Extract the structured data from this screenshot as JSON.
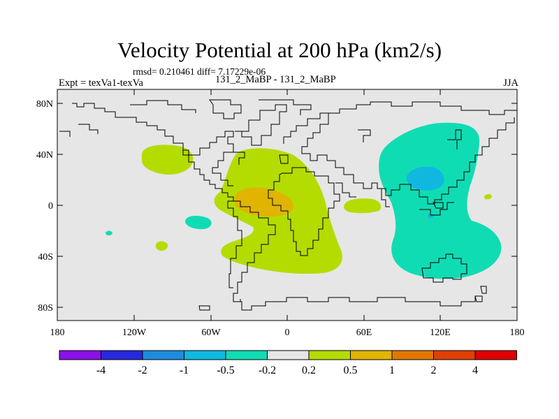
{
  "header": {
    "title": "Velocity Potential at 200 hPa (km2/s)",
    "stats": "rmsd= 0.210461 diff= 7.17229e-06",
    "expt_label": "Expt = texVa1-texVa",
    "experiment": "131_2_MaBP - 131_2_MaBP",
    "season": "JJA"
  },
  "map": {
    "projection": "cylindrical equidistant",
    "lon_range": [
      -180,
      180
    ],
    "lat_range": [
      -90,
      90
    ],
    "background_color": "#e6e6e6",
    "lat_ticks": [
      {
        "label": "80N",
        "value": 80
      },
      {
        "label": "40N",
        "value": 40
      },
      {
        "label": "0",
        "value": 0
      },
      {
        "label": "40S",
        "value": -40
      },
      {
        "label": "80S",
        "value": -80
      }
    ],
    "lon_ticks": [
      {
        "label": "180",
        "value": -180
      },
      {
        "label": "120W",
        "value": -120
      },
      {
        "label": "60W",
        "value": -60
      },
      {
        "label": "0",
        "value": 0
      },
      {
        "label": "60E",
        "value": 60
      },
      {
        "label": "120E",
        "value": 120
      },
      {
        "label": "180",
        "value": 180
      }
    ]
  },
  "colorbar": {
    "colors": [
      "#8a12e8",
      "#2828dc",
      "#1e8cdc",
      "#10b8e0",
      "#10dcb4",
      "#e6e6e6",
      "#b4dc00",
      "#e0b400",
      "#e07800",
      "#e04000",
      "#e00000"
    ],
    "labels": [
      "-4",
      "-2",
      "-1",
      "-0.5",
      "-0.2",
      "0.2",
      "0.5",
      "1",
      "2",
      "4"
    ]
  },
  "legend_values": {
    "green": "#b4dc00",
    "orange": "#e0b400",
    "teal": "#10dcb4",
    "blue": "#10b8e0"
  }
}
